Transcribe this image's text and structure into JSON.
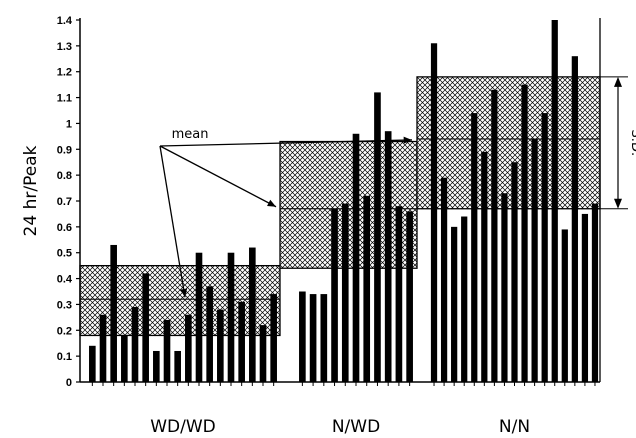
{
  "chart_data": {
    "type": "bar",
    "ylabel": "24 hr/Peak",
    "ylim": [
      0,
      1.4
    ],
    "yticks": [
      "0",
      "0.1",
      "0.2",
      "0.3",
      "0.4",
      "0.5",
      "0.6",
      "0.7",
      "0.8",
      "0.9",
      "1",
      "1.1",
      "1.2",
      "1.3",
      "1.4"
    ],
    "grid": false,
    "groups": [
      {
        "label": "WD/WD",
        "mean": 0.32,
        "sd_low": 0.18,
        "sd_high": 0.45,
        "values": [
          0.14,
          0.26,
          0.53,
          0.18,
          0.29,
          0.42,
          0.12,
          0.24,
          0.12,
          0.26,
          0.5,
          0.37,
          0.28,
          0.5,
          0.31,
          0.52,
          0.22,
          0.34
        ]
      },
      {
        "label": "N/WD",
        "mean": 0.67,
        "sd_low": 0.44,
        "sd_high": 0.93,
        "values": [
          0.35,
          0.34,
          0.34,
          0.67,
          0.69,
          0.96,
          0.72,
          1.12,
          0.97,
          0.68,
          0.66
        ]
      },
      {
        "label": "N/N",
        "mean": 0.94,
        "sd_low": 0.67,
        "sd_high": 1.18,
        "values": [
          1.31,
          0.79,
          0.6,
          0.64,
          1.04,
          0.89,
          1.13,
          0.73,
          0.85,
          1.15,
          0.94,
          1.04,
          1.4,
          0.59,
          1.26,
          0.65,
          0.69
        ]
      }
    ],
    "annotations": {
      "mean_label": "mean",
      "sd_label": "S.D."
    }
  }
}
